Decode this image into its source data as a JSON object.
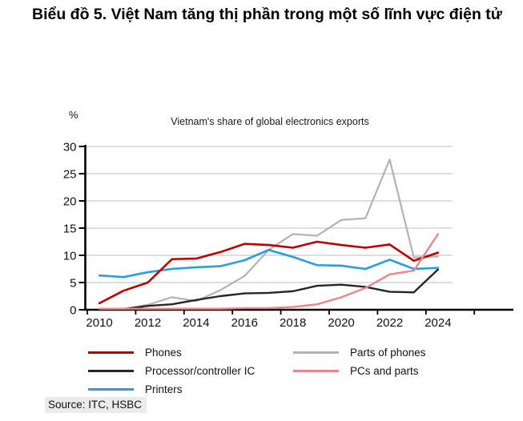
{
  "header": {
    "title": "Biểu đồ 5. Việt Nam tăng thị phần trong một số lĩnh vực điện tử"
  },
  "chart_data": {
    "type": "line",
    "title": "Vietnam's share of global electronics exports",
    "ylabel": "%",
    "xlabel": "",
    "ylim": [
      0,
      30
    ],
    "yticks": [
      0,
      5,
      10,
      15,
      20,
      25,
      30
    ],
    "x": [
      2010,
      2011,
      2012,
      2013,
      2014,
      2015,
      2016,
      2017,
      2018,
      2019,
      2020,
      2021,
      2022,
      2023,
      2024
    ],
    "xtick_labels": [
      "2010",
      "2012",
      "2014",
      "2016",
      "2018",
      "2020",
      "2022",
      "2024"
    ],
    "grid": "horizontal",
    "legend_position": "bottom",
    "series": [
      {
        "name": "Phones",
        "color": "#C00000",
        "values": [
          1.2,
          3.5,
          5.0,
          9.3,
          9.4,
          10.6,
          12.1,
          11.9,
          11.4,
          12.5,
          11.9,
          11.4,
          12.0,
          9.0,
          10.5
        ]
      },
      {
        "name": "Parts of phones",
        "color": "#B3B3B3",
        "values": [
          0.1,
          0.2,
          0.9,
          2.3,
          1.6,
          3.6,
          6.2,
          11.0,
          13.9,
          13.6,
          16.5,
          16.8,
          27.6,
          9.6,
          9.8
        ]
      },
      {
        "name": "Processor/controller IC",
        "color": "#262626",
        "values": [
          0.1,
          0.1,
          0.7,
          1.0,
          1.8,
          2.5,
          3.0,
          3.1,
          3.4,
          4.4,
          4.6,
          4.2,
          3.3,
          3.2,
          7.4
        ]
      },
      {
        "name": "PCs and parts",
        "color": "#F0838C",
        "values": [
          0.2,
          0.2,
          0.2,
          0.2,
          0.2,
          0.2,
          0.3,
          0.3,
          0.5,
          1.0,
          2.3,
          4.0,
          6.5,
          7.2,
          13.9
        ]
      },
      {
        "name": "Printers",
        "color": "#2B9CE4",
        "values": [
          6.3,
          6.0,
          6.9,
          7.5,
          7.8,
          8.0,
          9.1,
          11.0,
          9.7,
          8.2,
          8.1,
          7.5,
          9.2,
          7.5,
          7.7
        ]
      }
    ]
  },
  "source": {
    "text": "Source: ITC, HSBC"
  }
}
